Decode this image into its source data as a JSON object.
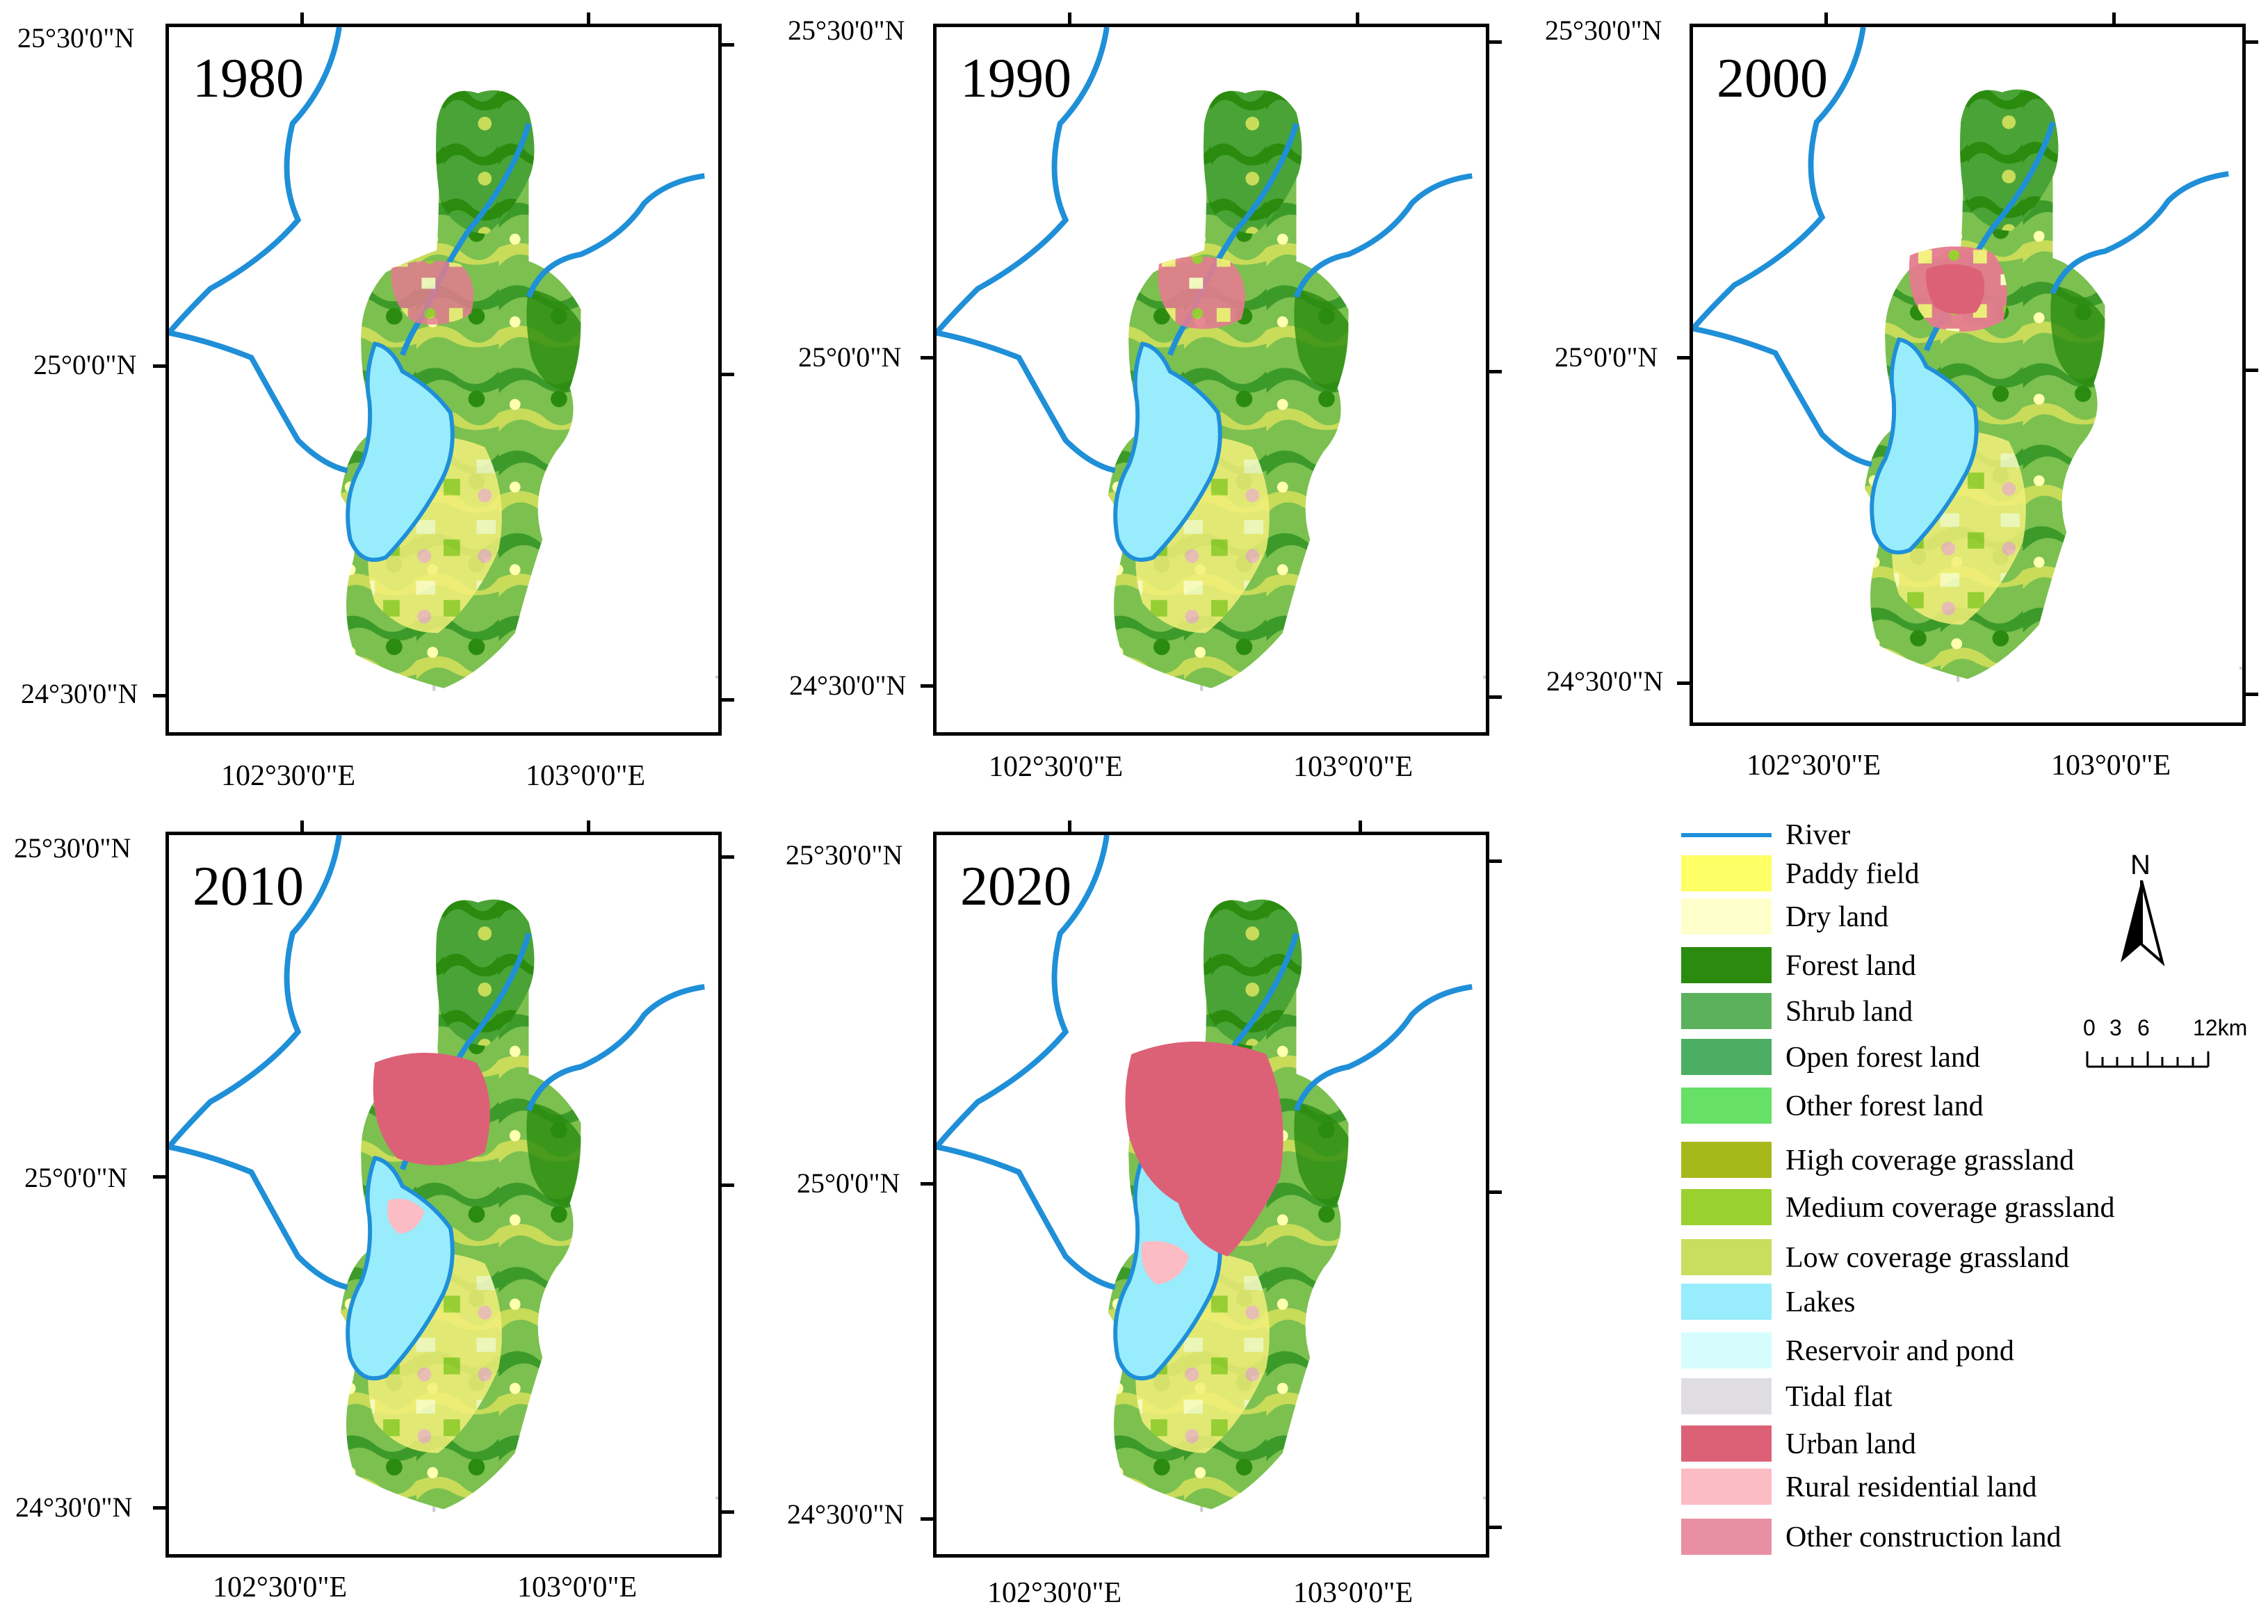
{
  "panels": [
    {
      "year": "1980"
    },
    {
      "year": "1990"
    },
    {
      "year": "2000"
    },
    {
      "year": "2010"
    },
    {
      "year": "2020"
    }
  ],
  "lat_labels": [
    "25°30'0\"N",
    "25°0'0\"N",
    "24°30'0\"N"
  ],
  "lon_labels": [
    "102°30'0\"E",
    "103°0'0\"E"
  ],
  "legend": {
    "items": [
      {
        "label": "River",
        "color": "#1f8fd8",
        "type": "line"
      },
      {
        "label": "Paddy field",
        "color": "#ffff66",
        "type": "patch"
      },
      {
        "label": "Dry land",
        "color": "#ffffcc",
        "type": "patch"
      },
      {
        "label": "Forest land",
        "color": "#2a8b0f",
        "type": "patch"
      },
      {
        "label": "Shrub land",
        "color": "#5cb25c",
        "type": "patch"
      },
      {
        "label": "Open forest land",
        "color": "#4cae63",
        "type": "patch"
      },
      {
        "label": "Other forest land",
        "color": "#66e066",
        "type": "patch"
      },
      {
        "label": "High coverage grassland",
        "color": "#a7b81a",
        "type": "patch"
      },
      {
        "label": "Medium coverage grassland",
        "color": "#9ad12f",
        "type": "patch"
      },
      {
        "label": "Low coverage grassland",
        "color": "#c9dd5f",
        "type": "patch"
      },
      {
        "label": "Lakes",
        "color": "#99ecfb",
        "type": "patch"
      },
      {
        "label": "Reservoir and pond",
        "color": "#d6fdfd",
        "type": "patch"
      },
      {
        "label": "Tidal flat",
        "color": "#e0dde2",
        "type": "patch"
      },
      {
        "label": "Urban land",
        "color": "#dc6177",
        "type": "patch"
      },
      {
        "label": "Rural residential land",
        "color": "#fbbcc4",
        "type": "patch"
      },
      {
        "label": "Other construction land",
        "color": "#e98fa3",
        "type": "patch"
      }
    ]
  },
  "north_arrow": {
    "label": "N"
  },
  "scale_bar": {
    "labels": [
      "0",
      "3",
      "6",
      "12km"
    ]
  }
}
